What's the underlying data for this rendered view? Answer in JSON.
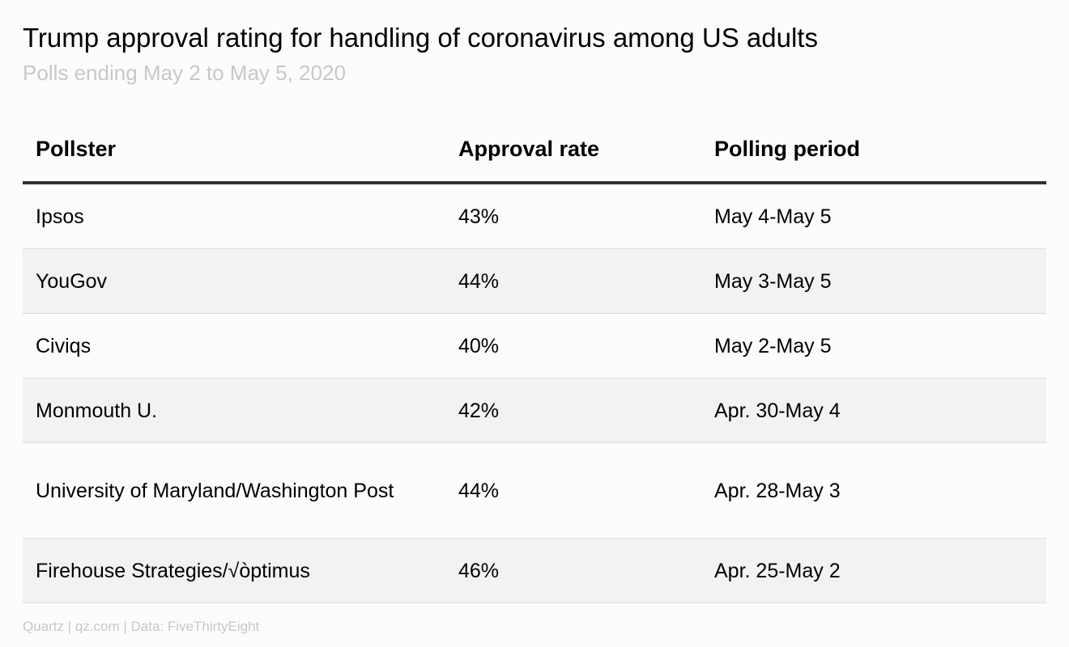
{
  "chart_data": {
    "type": "table",
    "title": "Trump approval rating for handling of coronavirus among US adults",
    "subtitle": "Polls ending May 2 to May 5, 2020",
    "columns": [
      "Pollster",
      "Approval rate",
      "Polling period"
    ],
    "rows": [
      [
        "Ipsos",
        "43%",
        "May 4-May 5"
      ],
      [
        "YouGov",
        "44%",
        "May 3-May 5"
      ],
      [
        "Civiqs",
        "40%",
        "May 2-May 5"
      ],
      [
        "Monmouth U.",
        "42%",
        "Apr. 30-May 4"
      ],
      [
        "University of Maryland/Washington Post",
        "44%",
        "Apr. 28-May 3"
      ],
      [
        "Firehouse Strategies/√òptimus",
        "46%",
        "Apr. 25-May 2"
      ]
    ],
    "footer": "Quartz | qz.com | Data: FiveThirtyEight"
  }
}
